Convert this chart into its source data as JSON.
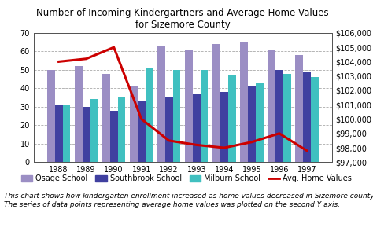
{
  "title": "Number of Incoming Kindergartners and Average Home Values\nfor Sizemore County",
  "years": [
    1988,
    1989,
    1990,
    1991,
    1992,
    1993,
    1994,
    1995,
    1996,
    1997
  ],
  "osage": [
    50,
    52,
    48,
    41,
    63,
    61,
    64,
    65,
    61,
    58
  ],
  "southbrook": [
    31,
    30,
    28,
    33,
    35,
    37,
    38,
    41,
    50,
    49
  ],
  "milburn": [
    31,
    34,
    35,
    51,
    50,
    50,
    47,
    43,
    48,
    46
  ],
  "home_values": [
    104000,
    104200,
    105000,
    100000,
    98500,
    98200,
    98000,
    98400,
    99000,
    97800
  ],
  "osage_color": "#9b8ec4",
  "southbrook_color": "#4040a0",
  "milburn_color": "#40c0c0",
  "line_color": "#cc0000",
  "ylim_left": [
    0,
    70
  ],
  "ylim_right": [
    97000,
    106000
  ],
  "yticks_left": [
    0,
    10,
    20,
    30,
    40,
    50,
    60,
    70
  ],
  "yticks_right": [
    97000,
    98000,
    99000,
    100000,
    101000,
    102000,
    103000,
    104000,
    105000,
    106000
  ],
  "ytick_right_labels": [
    "$97,000",
    "$98,000",
    "$99,000",
    "$100,000",
    "$101,000",
    "$102,000",
    "$103,000",
    "$104,000",
    "$105,000",
    "$106,000"
  ],
  "caption": "This chart shows how kindergarten enrollment increased as home values decreased in Sizemore county.\nThe series of data points representing average home values was plotted on the second Y axis.",
  "legend_labels": [
    "Osage School",
    "Southbrook School",
    "Milburn School",
    "Avg. Home Values"
  ],
  "background_color": "#ffffff",
  "grid_color": "#aaaaaa"
}
